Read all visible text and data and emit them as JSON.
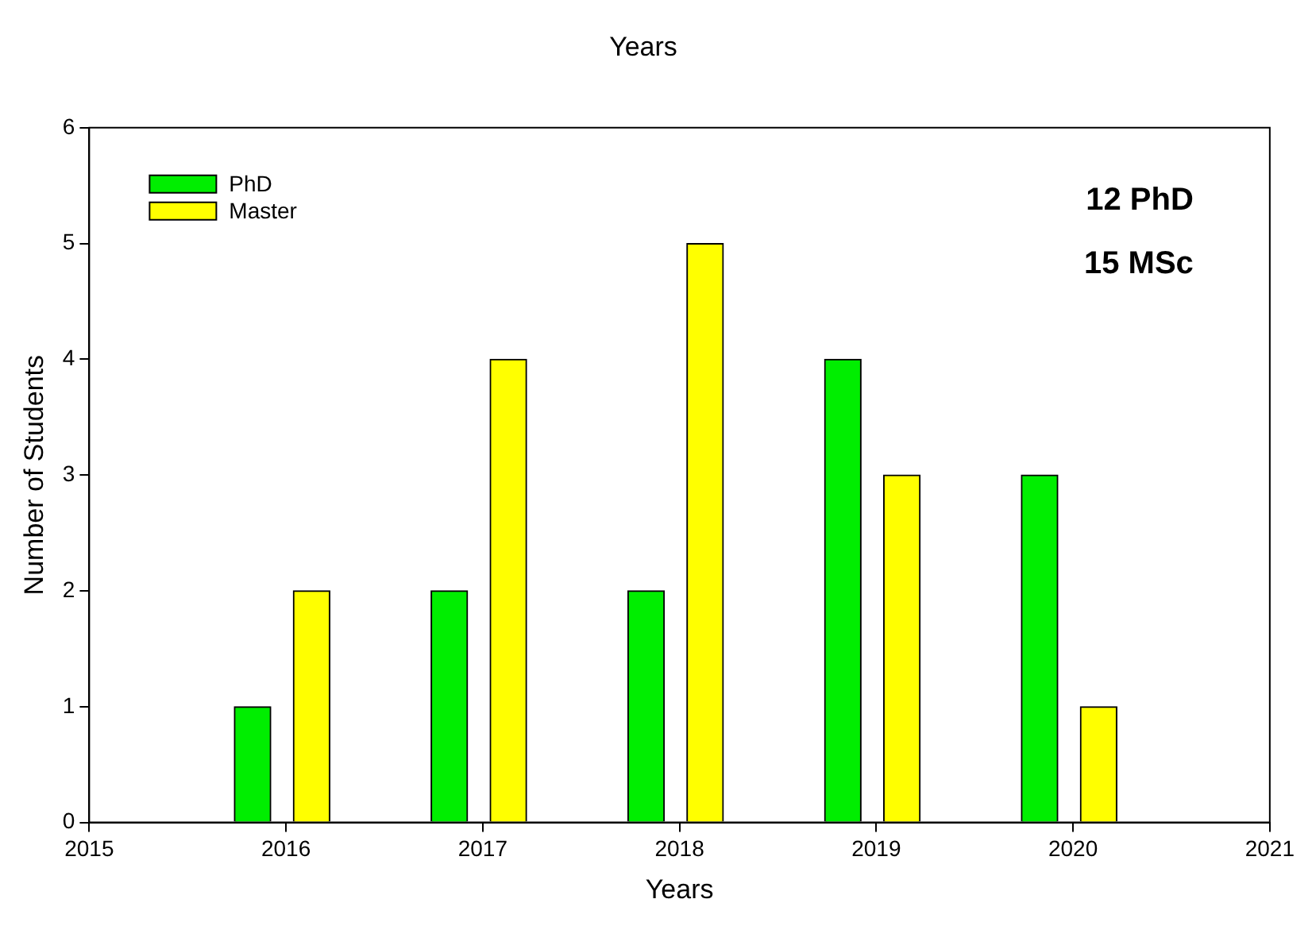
{
  "chart_data": {
    "type": "bar",
    "title": "Years",
    "xlabel": "Years",
    "ylabel": "Number of Students",
    "xlim": [
      2015,
      2021
    ],
    "xticks": [
      2015,
      2016,
      2017,
      2018,
      2019,
      2020,
      2021
    ],
    "ylim": [
      0,
      6
    ],
    "yticks": [
      0,
      1,
      2,
      3,
      4,
      5,
      6
    ],
    "series": [
      {
        "name": "PhD",
        "color": "#00ee00",
        "x": [
          2015.83,
          2016.83,
          2017.83,
          2018.83,
          2019.83
        ],
        "values": [
          1,
          2,
          2,
          4,
          3
        ]
      },
      {
        "name": "Master",
        "color": "#ffff00",
        "x": [
          2016.13,
          2017.13,
          2018.13,
          2019.13,
          2020.13
        ],
        "values": [
          2,
          4,
          5,
          3,
          1
        ]
      }
    ],
    "annotations": [
      "12 PhD",
      "15 MSc"
    ],
    "legend": "top left",
    "grid": false
  }
}
